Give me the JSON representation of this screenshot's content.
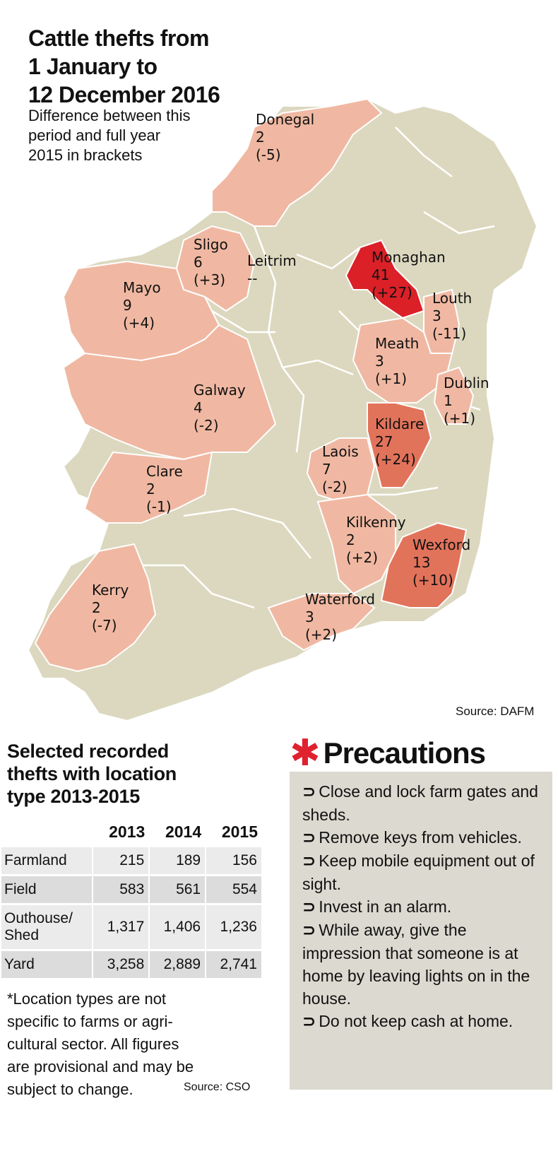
{
  "title": "Cattle thefts from\n1 January to\n12 December 2016",
  "subtitle": "Difference between this\nperiod and full year\n2015 in brackets",
  "colors": {
    "land": "#dcd8bf",
    "low": "#f0b8a2",
    "mid": "#e2735b",
    "high": "#db2028",
    "border": "#ffffff"
  },
  "counties": [
    {
      "name": "Donegal",
      "value": "2",
      "diff": "(-5)"
    },
    {
      "name": "Sligo",
      "value": "6",
      "diff": "(+3)"
    },
    {
      "name": "Leitrim",
      "value": "--",
      "diff": ""
    },
    {
      "name": "Mayo",
      "value": "9",
      "diff": "(+4)"
    },
    {
      "name": "Monaghan",
      "value": "41",
      "diff": "(+27)"
    },
    {
      "name": "Louth",
      "value": "3",
      "diff": "(-11)"
    },
    {
      "name": "Meath",
      "value": "3",
      "diff": "(+1)"
    },
    {
      "name": "Galway",
      "value": "4",
      "diff": "(-2)"
    },
    {
      "name": "Dublin",
      "value": "1",
      "diff": "(+1)"
    },
    {
      "name": "Kildare",
      "value": "27",
      "diff": "(+24)"
    },
    {
      "name": "Laois",
      "value": "7",
      "diff": "(-2)"
    },
    {
      "name": "Clare",
      "value": "2",
      "diff": "(-1)"
    },
    {
      "name": "Kilkenny",
      "value": "2",
      "diff": "(+2)"
    },
    {
      "name": "Wexford",
      "value": "13",
      "diff": "(+10)"
    },
    {
      "name": "Kerry",
      "value": "2",
      "diff": "(-7)"
    },
    {
      "name": "Waterford",
      "value": "3",
      "diff": "(+2)"
    }
  ],
  "source_dafm": "Source: DAFM",
  "table": {
    "title": "Selected recorded\nthefts with location\ntype 2013-2015",
    "columns": [
      "2013",
      "2014",
      "2015"
    ],
    "rows": [
      {
        "label": "Farmland",
        "values": [
          "215",
          "189",
          "156"
        ]
      },
      {
        "label": "Field",
        "values": [
          "583",
          "561",
          "554"
        ]
      },
      {
        "label": "Outhouse/\nShed",
        "values": [
          "1,317",
          "1,406",
          "1,236"
        ]
      },
      {
        "label": "Yard",
        "values": [
          "3,258",
          "2,889",
          "2,741"
        ]
      }
    ]
  },
  "footnote": "*Location types are not\nspecific to farms or agri-\ncultural sector. All figures\nare provisional and may be\nsubject to change.",
  "source_cso": "Source: CSO",
  "precautions": {
    "title": "Precautions",
    "star": "✱",
    "arrow_glyph": "⊃",
    "items": [
      "Close and lock farm gates and sheds.",
      "Remove keys from vehicles.",
      "Keep mobile equipment out of sight.",
      "Invest in an alarm.",
      "While away, give the impression that someone is at home by leaving lights on in the house.",
      "Do not keep cash at home."
    ]
  }
}
